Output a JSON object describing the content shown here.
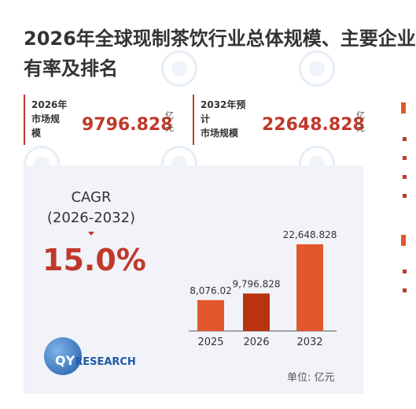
{
  "title": {
    "line1": "2026年全球现制茶饮行业总体规模、主要企业",
    "line2": "有率及排名"
  },
  "stats": [
    {
      "label_lines": [
        "2026年",
        "市场规",
        "模"
      ],
      "value": "9796.828",
      "unit_lines": [
        "亿",
        "元"
      ]
    },
    {
      "label_lines": [
        "2032年预",
        "计",
        "市场规模"
      ],
      "value": "22648.828",
      "unit_lines": [
        "亿",
        "元"
      ]
    }
  ],
  "cagr": {
    "label": "CAGR",
    "range": "(2026-2032)",
    "value": "15.0%"
  },
  "logo": {
    "text_prefix": "QY",
    "text_suffix": "RESEARCH"
  },
  "unit_note": "单位: 亿元",
  "colors": {
    "accent": "#c0392b",
    "bar_light": "#e3572f",
    "bar_dark": "#b8330e",
    "panel_bg": "#f1f3f8"
  },
  "chart_data": {
    "type": "bar",
    "categories": [
      "2025",
      "2026",
      "2032"
    ],
    "values": [
      8076.02,
      9796.828,
      22648.828
    ],
    "value_labels": [
      "8,076.02",
      "9,796.828",
      "22,648.828"
    ],
    "ylim": [
      0,
      22648.828
    ],
    "grid": false,
    "legend": "none"
  }
}
